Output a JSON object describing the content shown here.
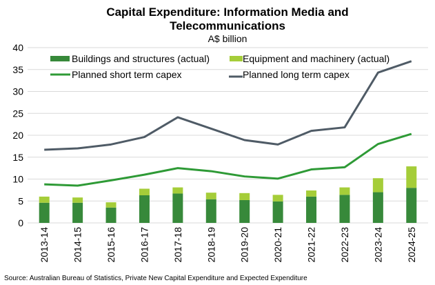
{
  "chart_data": {
    "type": "bar",
    "title": "Capital Expenditure: Information Media and Telecommunications",
    "title_lines": [
      "Capital Expenditure: Information Media and",
      "Telecommunications"
    ],
    "subtitle": "A$ billion",
    "xlabel": "",
    "ylabel": "",
    "ylim": [
      0,
      40
    ],
    "yticks": [
      0,
      5,
      10,
      15,
      20,
      25,
      30,
      35,
      40
    ],
    "grid": true,
    "legend": "top-left",
    "categories": [
      "2013-14",
      "2014-15",
      "2015-16",
      "2016-17",
      "2017-18",
      "2018-19",
      "2019-20",
      "2020-21",
      "2021-22",
      "2022-23",
      "2023-24",
      "2024-25"
    ],
    "series": [
      {
        "name": "Buildings and structures (actual)",
        "kind": "stacked-bar",
        "color": "#37893a",
        "values": [
          4.6,
          4.6,
          3.5,
          6.3,
          6.7,
          5.4,
          5.2,
          4.9,
          6.0,
          6.4,
          7.0,
          8.0
        ]
      },
      {
        "name": "Equipment and machinery (actual)",
        "kind": "stacked-bar",
        "color": "#a5cd39",
        "values": [
          1.4,
          1.2,
          1.2,
          1.5,
          1.4,
          1.5,
          1.6,
          1.5,
          1.4,
          1.7,
          3.2,
          4.9
        ]
      },
      {
        "name": "Planned short term capex",
        "kind": "line",
        "color": "#2e9a36",
        "values": [
          8.8,
          8.5,
          9.7,
          11.0,
          12.5,
          11.8,
          10.6,
          10.1,
          12.2,
          12.7,
          18.0,
          20.3
        ]
      },
      {
        "name": "Planned long term capex",
        "kind": "line",
        "color": "#4f5b66",
        "values": [
          16.7,
          17.0,
          17.9,
          19.6,
          24.1,
          21.5,
          18.9,
          17.9,
          21.0,
          21.8,
          34.3,
          36.9
        ]
      }
    ],
    "source": "Source: Australian Bureau of Statistics, Private New Capital Expenditure and Expected Expenditure"
  }
}
